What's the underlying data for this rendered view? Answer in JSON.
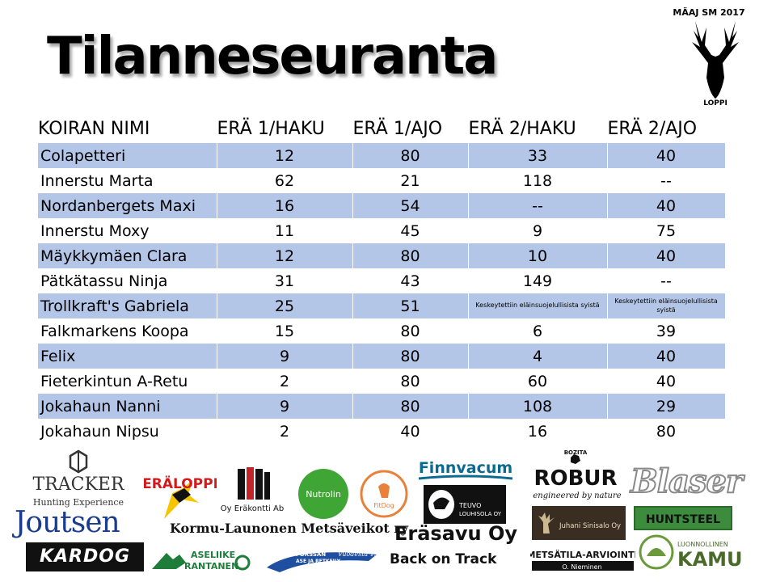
{
  "title": "Tilanneseuranta",
  "event": {
    "label": "MÄAJ SM 2017",
    "place": "LOPPI"
  },
  "table": {
    "headers": [
      "KOIRAN NIMI",
      "ERÄ 1/HAKU",
      "ERÄ 1/AJO",
      "ERÄ 2/HAKU",
      "ERÄ 2/AJO"
    ],
    "rows": [
      [
        "Colapetteri",
        "12",
        "80",
        "33",
        "40"
      ],
      [
        "Innerstu Marta",
        "62",
        "21",
        "118",
        "--"
      ],
      [
        "Nordanbergets Maxi",
        "16",
        "54",
        "--",
        "40"
      ],
      [
        "Innerstu Moxy",
        "11",
        "45",
        "9",
        "75"
      ],
      [
        "Mäykkymäen Clara",
        "12",
        "80",
        "10",
        "40"
      ],
      [
        "Pätkätassu Ninja",
        "31",
        "43",
        "149",
        "--"
      ],
      [
        "Trollkraft's Gabriela",
        "25",
        "51",
        "Keskeytettiin eläinsuojelullisista syistä",
        "Keskeytettiin eläinsuojelullisista syistä"
      ],
      [
        "Falkmarkens Koopa",
        "15",
        "80",
        "6",
        "39"
      ],
      [
        "Felix",
        "9",
        "80",
        "4",
        "40"
      ],
      [
        "Fieterkintun A-Retu",
        "2",
        "80",
        "60",
        "40"
      ],
      [
        "Jokahaun Nanni",
        "9",
        "80",
        "108",
        "29"
      ],
      [
        "Jokahaun Nipsu",
        "2",
        "40",
        "16",
        "80"
      ]
    ]
  },
  "sponsors": {
    "tracker": {
      "name": "TRACKER",
      "tagline": "Hunting Experience"
    },
    "joutsen": "Joutsen",
    "kardog": "KARDOG",
    "eraloppi": "ERÄLOPPI",
    "erakontti": "Oy Eräkontti Ab",
    "kormu": "Kormu-Launonen Metsäveikot ry",
    "aseliike": {
      "line1": "ASELIIKE",
      "line2": "RANTANEN"
    },
    "forssan": {
      "line1": "FORSSAN",
      "line2": "ASE JA RETKEILY",
      "year": "Vuodesta 1991"
    },
    "nutrolin": "Nutrolin",
    "fitdog": "FitDog",
    "finnvacum": "Finnvacum",
    "teuvo": {
      "line1": "TEUVO",
      "line2": "LOUHISOLA OY"
    },
    "erasavu": "Eräsavu Oy",
    "backontrack": "Back on Track",
    "robur": {
      "brand": "BOZITA",
      "name": "ROBUR",
      "tagline": "engineered by nature"
    },
    "sinisalo": "Juhani Sinisalo Oy",
    "metsatila": {
      "name": "METSÄTILA-ARVIOINTI",
      "person": "O. Nieminen"
    },
    "blaser": "Blaser",
    "huntsteel": "HUNTSTEEL",
    "kamu": {
      "line1": "LUONNOLLINEN",
      "line2": "KAMU"
    }
  },
  "colors": {
    "band": "#b4c6e7",
    "white": "#ffffff",
    "text": "#000000"
  }
}
